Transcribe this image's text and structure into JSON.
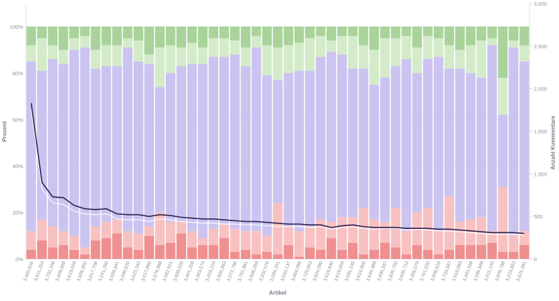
{
  "chart_data": {
    "type": "bar",
    "stacked": true,
    "title": "",
    "xlabel": "Artikel",
    "ylabel_left": "Prozent",
    "ylabel_right": "Anzahl Kommentare",
    "ylim_left": [
      0,
      100
    ],
    "ylim_right": [
      0,
      3000
    ],
    "left_ticks": [
      "0%",
      "20%",
      "40%",
      "60%",
      "80%",
      "100%"
    ],
    "right_ticks": [
      "0",
      "500",
      "1,000",
      "1,500",
      "2,000",
      "2,500",
      "3,000"
    ],
    "grid": true,
    "colors": {
      "dark_red": "#ef8f8f",
      "light_red": "#f8c1c1",
      "purple": "#cbc3f0",
      "light_green": "#d4ebc9",
      "dark_green": "#a9d39a",
      "count_line": "#2b2150",
      "smooth_line": "#ffffff"
    },
    "categories": [
      "3,460,816",
      "3,611,254",
      "3,732,168",
      "3,408,888",
      "3,619,659",
      "3,606,850",
      "3,617,706",
      "3,241,280",
      "3,609,841",
      "3,596,620",
      "3,625,342",
      "3,617,866",
      "3,579,988",
      "3,582,921",
      "3,608,526",
      "3,461,208",
      "3,463,574",
      "3,459,224",
      "3,605,983",
      "3,572,796",
      "3,752,981",
      "3,608,269",
      "3,332,578",
      "3,594,151",
      "3,633,137",
      "3,464,099",
      "3,729,663",
      "3,604,090",
      "3,619,640",
      "3,619,004",
      "3,591,235",
      "3,614,956",
      "3,644,388",
      "3,496,337",
      "3,609,750",
      "3,606,712",
      "3,356,079",
      "3,761,020",
      "3,608,619",
      "3,733,587",
      "3,618,083",
      "3,343,339",
      "3,596,849",
      "3,611,145",
      "3,609,788",
      "3,223,862",
      "3,621,391"
    ],
    "series": [
      {
        "values": [
          4,
          8,
          5,
          6,
          4,
          2,
          8,
          9,
          11,
          5,
          4,
          10,
          6,
          7,
          11,
          5,
          6,
          6,
          9,
          3,
          4,
          2,
          3,
          2,
          6,
          1,
          5,
          4,
          9,
          4,
          7,
          2,
          4,
          7,
          5,
          2,
          6,
          4,
          2,
          4,
          6,
          6,
          6,
          7,
          3,
          3,
          6
        ]
      },
      {
        "values": [
          8,
          9,
          9,
          6,
          6,
          3,
          6,
          7,
          6,
          7,
          7,
          4,
          14,
          9,
          5,
          7,
          3,
          7,
          6,
          10,
          8,
          10,
          7,
          22,
          8,
          11,
          9,
          13,
          7,
          14,
          11,
          20,
          13,
          9,
          17,
          10,
          14,
          18,
          10,
          23,
          10,
          11,
          12,
          5,
          28,
          7,
          6
        ]
      },
      {
        "values": [
          73,
          64,
          72,
          72,
          80,
          86,
          68,
          67,
          66,
          79,
          74,
          70,
          54,
          64,
          67,
          72,
          75,
          74,
          72,
          75,
          71,
          79,
          69,
          53,
          66,
          69,
          67,
          70,
          73,
          70,
          64,
          60,
          58,
          62,
          61,
          74,
          60,
          64,
          75,
          55,
          66,
          63,
          60,
          80,
          31,
          81,
          73
        ]
      },
      {
        "values": [
          7,
          14,
          6,
          6,
          5,
          5,
          8,
          9,
          9,
          4,
          9,
          4,
          17,
          12,
          8,
          9,
          7,
          8,
          8,
          6,
          8,
          5,
          13,
          14,
          12,
          12,
          14,
          9,
          5,
          8,
          14,
          10,
          15,
          17,
          12,
          10,
          11,
          10,
          8,
          10,
          8,
          12,
          16,
          3,
          16,
          3,
          7
        ]
      },
      {
        "values": [
          8,
          5,
          8,
          10,
          5,
          4,
          10,
          8,
          8,
          5,
          6,
          12,
          9,
          8,
          9,
          7,
          9,
          5,
          5,
          6,
          9,
          4,
          8,
          9,
          8,
          7,
          5,
          4,
          6,
          4,
          4,
          8,
          10,
          5,
          5,
          4,
          9,
          4,
          5,
          8,
          10,
          8,
          6,
          5,
          22,
          6,
          8
        ]
      }
    ],
    "count_line": [
      1830,
      900,
      730,
      720,
      630,
      590,
      580,
      590,
      530,
      520,
      520,
      500,
      520,
      510,
      490,
      480,
      470,
      470,
      460,
      450,
      440,
      440,
      430,
      420,
      410,
      410,
      400,
      400,
      370,
      390,
      400,
      380,
      370,
      370,
      370,
      360,
      360,
      360,
      350,
      350,
      340,
      330,
      320,
      310,
      310,
      310,
      300
    ],
    "smooth_line": [
      1750,
      820,
      660,
      640,
      560,
      530,
      520,
      530,
      470,
      460,
      460,
      440,
      470,
      460,
      440,
      430,
      420,
      420,
      410,
      410,
      400,
      400,
      390,
      380,
      380,
      380,
      370,
      380,
      350,
      370,
      380,
      360,
      350,
      360,
      360,
      340,
      350,
      340,
      330,
      330,
      320,
      310,
      300,
      290,
      290,
      290,
      280
    ]
  }
}
